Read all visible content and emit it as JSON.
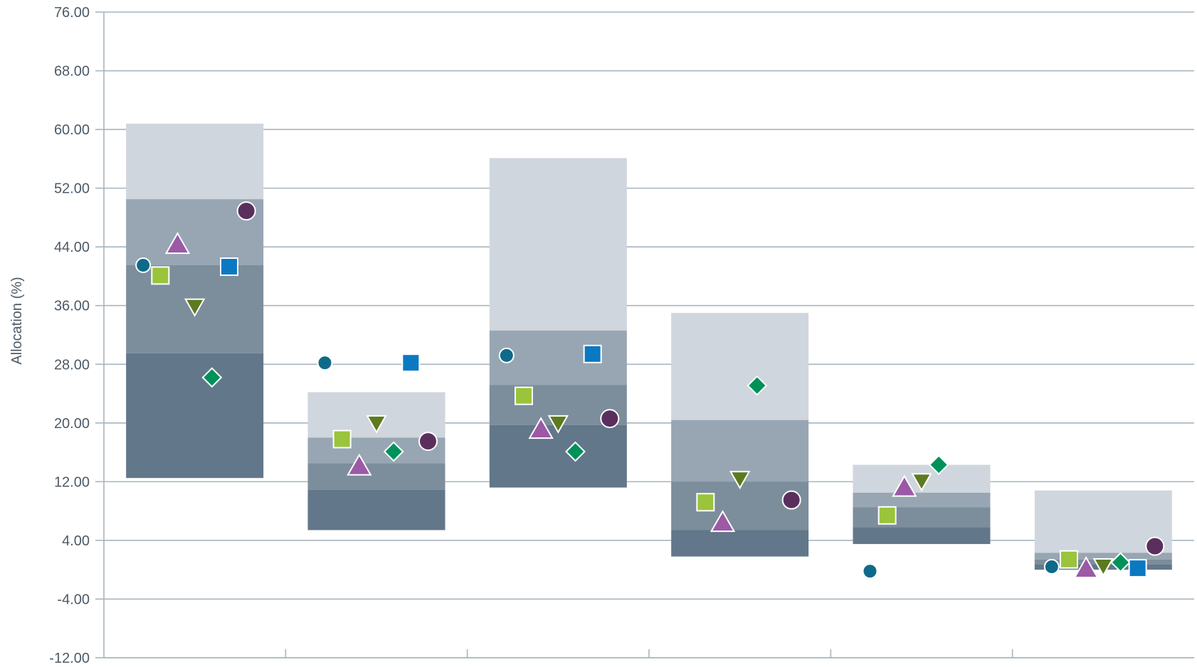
{
  "chart_data": {
    "type": "floating-bar-with-markers",
    "ylabel": "Allocation (%)",
    "ylim": [
      -12,
      76
    ],
    "yticks": [
      76,
      68,
      60,
      52,
      44,
      36,
      28,
      20,
      12,
      4,
      -4,
      -12
    ],
    "ytick_labels": [
      "76.00",
      "68.00",
      "60.00",
      "52.00",
      "44.00",
      "36.00",
      "28.00",
      "20.00",
      "12.00",
      "4.00",
      "-4.00",
      "-12.00"
    ],
    "grid": true,
    "categories": [
      "",
      "",
      "",
      "",
      "",
      ""
    ],
    "band_colors": [
      "#d0d6dd",
      "#98a6b3",
      "#7c8d9c",
      "#627789"
    ],
    "bars": [
      {
        "p5": 12.5,
        "p25": 29.5,
        "p50": 41.5,
        "p75": 50.5,
        "p95": 60.8
      },
      {
        "p5": 5.4,
        "p25": 10.9,
        "p50": 14.5,
        "p75": 18.0,
        "p95": 24.2
      },
      {
        "p5": 11.2,
        "p25": 19.7,
        "p50": 25.2,
        "p75": 32.6,
        "p95": 56.1
      },
      {
        "p5": 1.8,
        "p25": 5.4,
        "p50": 12.0,
        "p75": 20.4,
        "p95": 35.0
      },
      {
        "p5": 3.5,
        "p25": 5.8,
        "p50": 8.5,
        "p75": 10.5,
        "p95": 14.3
      },
      {
        "p5": 0.0,
        "p25": 0.7,
        "p50": 1.4,
        "p75": 2.3,
        "p95": 10.8
      }
    ],
    "series": [
      {
        "marker": "circle-small",
        "color": "#0e6a8a",
        "values": [
          41.5,
          28.2,
          29.2,
          null,
          -0.2,
          0.4
        ]
      },
      {
        "marker": "square-lime",
        "color": "#9ac43b",
        "values": [
          40.1,
          17.8,
          23.7,
          9.2,
          7.4,
          1.4
        ]
      },
      {
        "marker": "triangle-up",
        "color": "#9b59a6",
        "values": [
          44.2,
          14.0,
          19.0,
          6.3,
          11.1,
          0.0
        ]
      },
      {
        "marker": "triangle-down",
        "color": "#5c7a1f",
        "values": [
          35.9,
          20.0,
          20.0,
          12.4,
          12.1,
          0.5
        ]
      },
      {
        "marker": "diamond",
        "color": "#00915a",
        "values": [
          26.2,
          16.1,
          16.1,
          25.1,
          14.3,
          1.0
        ]
      },
      {
        "marker": "square-blue",
        "color": "#0a79c2",
        "values": [
          41.3,
          28.2,
          29.4,
          null,
          null,
          0.2
        ]
      },
      {
        "marker": "circle-large",
        "color": "#5a2f5e",
        "values": [
          48.9,
          17.5,
          20.6,
          9.5,
          null,
          3.2
        ]
      }
    ]
  }
}
